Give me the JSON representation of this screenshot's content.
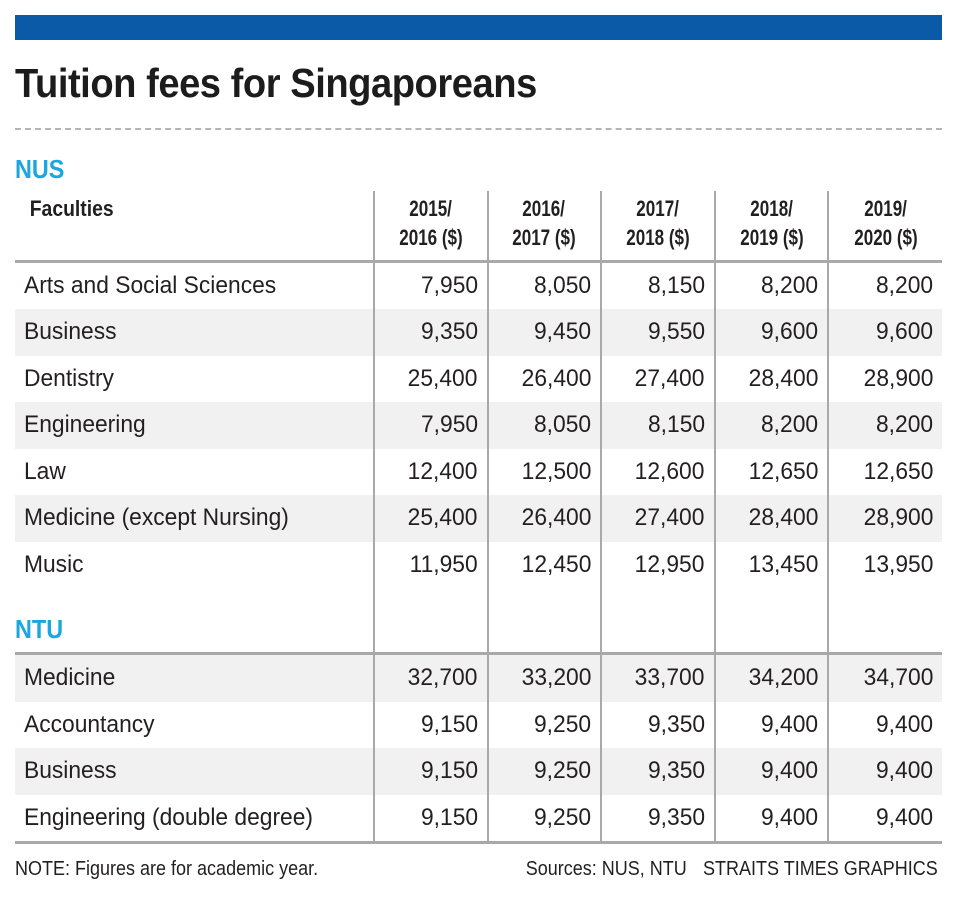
{
  "header": {
    "bar_color": "#0a5aa8",
    "title": "Tuition fees for Singaporeans"
  },
  "sections": {
    "nus": {
      "label": "NUS",
      "color": "#1ba6e0"
    },
    "ntu": {
      "label": "NTU",
      "color": "#1ba6e0"
    }
  },
  "table": {
    "columns": [
      "Faculties",
      "2015/ 2016 ($)",
      "2016/ 2017 ($)",
      "2017/ 2018 ($)",
      "2018/ 2019 ($)",
      "2019/ 2020 ($)"
    ],
    "col_lines": [
      [
        "2015/",
        "2016 ($)"
      ],
      [
        "2016/",
        "2017 ($)"
      ],
      [
        "2017/",
        "2018 ($)"
      ],
      [
        "2018/",
        "2019 ($)"
      ],
      [
        "2019/",
        "2020 ($)"
      ]
    ],
    "nus_rows": [
      {
        "faculty": "Arts and Social Sciences",
        "values": [
          "7,950",
          "8,050",
          "8,150",
          "8,200",
          "8,200"
        ]
      },
      {
        "faculty": "Business",
        "values": [
          "9,350",
          "9,450",
          "9,550",
          "9,600",
          "9,600"
        ]
      },
      {
        "faculty": "Dentistry",
        "values": [
          "25,400",
          "26,400",
          "27,400",
          "28,400",
          "28,900"
        ]
      },
      {
        "faculty": "Engineering",
        "values": [
          "7,950",
          "8,050",
          "8,150",
          "8,200",
          "8,200"
        ]
      },
      {
        "faculty": "Law",
        "values": [
          "12,400",
          "12,500",
          "12,600",
          "12,650",
          "12,650"
        ]
      },
      {
        "faculty": "Medicine (except Nursing)",
        "values": [
          "25,400",
          "26,400",
          "27,400",
          "28,400",
          "28,900"
        ]
      },
      {
        "faculty": "Music",
        "values": [
          "11,950",
          "12,450",
          "12,950",
          "13,450",
          "13,950"
        ]
      }
    ],
    "ntu_rows": [
      {
        "faculty": "Medicine",
        "values": [
          "32,700",
          "33,200",
          "33,700",
          "34,200",
          "34,700"
        ]
      },
      {
        "faculty": "Accountancy",
        "values": [
          "9,150",
          "9,250",
          "9,350",
          "9,400",
          "9,400"
        ]
      },
      {
        "faculty": "Business",
        "values": [
          "9,150",
          "9,250",
          "9,350",
          "9,400",
          "9,400"
        ]
      },
      {
        "faculty": "Engineering (double degree)",
        "values": [
          "9,150",
          "9,250",
          "9,350",
          "9,400",
          "9,400"
        ]
      }
    ]
  },
  "footer": {
    "note": "NOTE: Figures are for academic year.",
    "sources": "Sources: NUS, NTU",
    "credit": "STRAITS TIMES GRAPHICS"
  },
  "chart_data": {
    "type": "table",
    "title": "Tuition fees for Singaporeans",
    "columns": [
      "Faculties",
      "2015/2016 ($)",
      "2016/2017 ($)",
      "2017/2018 ($)",
      "2018/2019 ($)",
      "2019/2020 ($)"
    ],
    "groups": [
      {
        "name": "NUS",
        "rows": [
          {
            "faculty": "Arts and Social Sciences",
            "values": [
              7950,
              8050,
              8150,
              8200,
              8200
            ]
          },
          {
            "faculty": "Business",
            "values": [
              9350,
              9450,
              9550,
              9600,
              9600
            ]
          },
          {
            "faculty": "Dentistry",
            "values": [
              25400,
              26400,
              27400,
              28400,
              28900
            ]
          },
          {
            "faculty": "Engineering",
            "values": [
              7950,
              8050,
              8150,
              8200,
              8200
            ]
          },
          {
            "faculty": "Law",
            "values": [
              12400,
              12500,
              12600,
              12650,
              12650
            ]
          },
          {
            "faculty": "Medicine (except Nursing)",
            "values": [
              25400,
              26400,
              27400,
              28400,
              28900
            ]
          },
          {
            "faculty": "Music",
            "values": [
              11950,
              12450,
              12950,
              13450,
              13950
            ]
          }
        ]
      },
      {
        "name": "NTU",
        "rows": [
          {
            "faculty": "Medicine",
            "values": [
              32700,
              33200,
              33700,
              34200,
              34700
            ]
          },
          {
            "faculty": "Accountancy",
            "values": [
              9150,
              9250,
              9350,
              9400,
              9400
            ]
          },
          {
            "faculty": "Business",
            "values": [
              9150,
              9250,
              9350,
              9400,
              9400
            ]
          },
          {
            "faculty": "Engineering (double degree)",
            "values": [
              9150,
              9250,
              9350,
              9400,
              9400
            ]
          }
        ]
      }
    ],
    "note": "NOTE: Figures are for academic year.",
    "source": "Sources: NUS, NTU",
    "credit": "STRAITS TIMES GRAPHICS"
  }
}
